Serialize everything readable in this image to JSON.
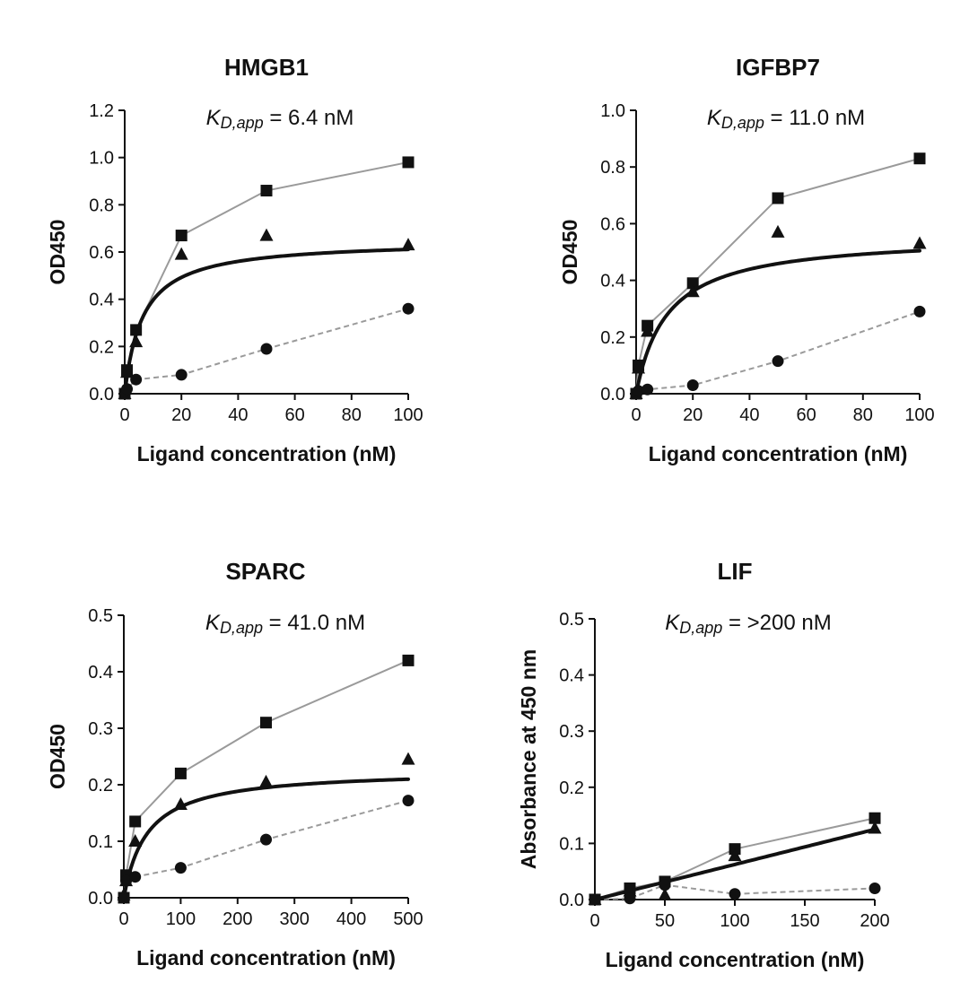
{
  "chart_data": [
    {
      "type": "line",
      "title": "HMGB1",
      "annotation": {
        "k_symbol": "K",
        "k_subscript": "D,app",
        "value_text": " = 6.4 nM"
      },
      "xlabel": "Ligand concentration (nM)",
      "ylabel": "OD450",
      "xlim": [
        0,
        100
      ],
      "ylim": [
        0,
        1.2
      ],
      "xticks": [
        0,
        20,
        40,
        60,
        80,
        100
      ],
      "xtick_labels": [
        "0",
        "20",
        "40",
        "60",
        "80",
        "100"
      ],
      "yticks": [
        0,
        0.2,
        0.4,
        0.6,
        0.8,
        1.0,
        1.2
      ],
      "ytick_labels": [
        "0.0",
        "0.2",
        "0.4",
        "0.6",
        "0.8",
        "1.0",
        "1.2"
      ],
      "series": [
        {
          "name": "squares",
          "marker": "square",
          "line": "solid-gray",
          "x": [
            0,
            0.8,
            4,
            20,
            50,
            100
          ],
          "y": [
            0.0,
            0.1,
            0.27,
            0.67,
            0.86,
            0.98
          ]
        },
        {
          "name": "triangles",
          "marker": "triangle",
          "line": "none",
          "x": [
            0,
            0.8,
            4,
            20,
            50,
            100
          ],
          "y": [
            0.0,
            0.09,
            0.22,
            0.59,
            0.67,
            0.63
          ]
        },
        {
          "name": "circles",
          "marker": "circle",
          "line": "dashed-gray",
          "x": [
            0,
            0.8,
            4,
            20,
            50,
            100
          ],
          "y": [
            0.0,
            0.02,
            0.06,
            0.08,
            0.19,
            0.36
          ]
        }
      ],
      "fit": {
        "model": "one-site",
        "bmax": 0.65,
        "kd": 6.4
      }
    },
    {
      "type": "line",
      "title": "IGFBP7",
      "annotation": {
        "k_symbol": "K",
        "k_subscript": "D,app",
        "value_text": " = 11.0 nM"
      },
      "xlabel": "Ligand concentration (nM)",
      "ylabel": "OD450",
      "xlim": [
        0,
        100
      ],
      "ylim": [
        0,
        1.0
      ],
      "xticks": [
        0,
        20,
        40,
        60,
        80,
        100
      ],
      "xtick_labels": [
        "0",
        "20",
        "40",
        "60",
        "80",
        "100"
      ],
      "yticks": [
        0,
        0.2,
        0.4,
        0.6,
        0.8,
        1.0
      ],
      "ytick_labels": [
        "0.0",
        "0.2",
        "0.4",
        "0.6",
        "0.8",
        "1.0"
      ],
      "series": [
        {
          "name": "squares",
          "marker": "square",
          "line": "solid-gray",
          "x": [
            0,
            0.8,
            4,
            20,
            50,
            100
          ],
          "y": [
            0.0,
            0.1,
            0.24,
            0.39,
            0.69,
            0.83
          ]
        },
        {
          "name": "triangles",
          "marker": "triangle",
          "line": "none",
          "x": [
            0,
            0.8,
            4,
            20,
            50,
            100
          ],
          "y": [
            0.0,
            0.09,
            0.22,
            0.36,
            0.57,
            0.53
          ]
        },
        {
          "name": "circles",
          "marker": "circle",
          "line": "dashed-gray",
          "x": [
            0,
            0.8,
            4,
            20,
            50,
            100
          ],
          "y": [
            0.0,
            0.01,
            0.015,
            0.03,
            0.115,
            0.29
          ]
        }
      ],
      "fit": {
        "model": "one-site",
        "bmax": 0.56,
        "kd": 11.0
      }
    },
    {
      "type": "line",
      "title": "SPARC",
      "annotation": {
        "k_symbol": "K",
        "k_subscript": "D,app",
        "value_text": " = 41.0 nM"
      },
      "xlabel": "Ligand concentration (nM)",
      "ylabel": "OD450",
      "xlim": [
        0,
        500
      ],
      "ylim": [
        0,
        0.5
      ],
      "xticks": [
        0,
        100,
        200,
        300,
        400,
        500
      ],
      "xtick_labels": [
        "0",
        "100",
        "200",
        "300",
        "400",
        "500"
      ],
      "yticks": [
        0,
        0.1,
        0.2,
        0.3,
        0.4,
        0.5
      ],
      "ytick_labels": [
        "0.0",
        "0.1",
        "0.2",
        "0.3",
        "0.4",
        "0.5"
      ],
      "series": [
        {
          "name": "squares",
          "marker": "square",
          "line": "solid-gray",
          "x": [
            0,
            4,
            20,
            100,
            250,
            500
          ],
          "y": [
            0.0,
            0.04,
            0.135,
            0.22,
            0.31,
            0.42
          ]
        },
        {
          "name": "triangles",
          "marker": "triangle",
          "line": "none",
          "x": [
            0,
            4,
            20,
            100,
            250,
            500
          ],
          "y": [
            0.005,
            0.03,
            0.1,
            0.165,
            0.205,
            0.245
          ]
        },
        {
          "name": "circles",
          "marker": "circle",
          "line": "dashed-gray",
          "x": [
            0,
            4,
            20,
            100,
            250,
            500
          ],
          "y": [
            0.0,
            0.03,
            0.037,
            0.053,
            0.103,
            0.172
          ]
        }
      ],
      "fit": {
        "model": "one-site",
        "bmax": 0.227,
        "kd": 41.0
      }
    },
    {
      "type": "line",
      "title": "LIF",
      "annotation": {
        "k_symbol": "K",
        "k_subscript": "D,app",
        "value_text": " = >200 nM"
      },
      "xlabel": "Ligand concentration (nM)",
      "ylabel": "Absorbance at 450 nm",
      "xlim": [
        0,
        200
      ],
      "ylim": [
        0,
        0.5
      ],
      "xticks": [
        0,
        50,
        100,
        150,
        200
      ],
      "xtick_labels": [
        "0",
        "50",
        "100",
        "150",
        "200"
      ],
      "yticks": [
        0,
        0.1,
        0.2,
        0.3,
        0.4,
        0.5
      ],
      "ytick_labels": [
        "0.0",
        "0.1",
        "0.2",
        "0.3",
        "0.4",
        "0.5"
      ],
      "series": [
        {
          "name": "squares",
          "marker": "square",
          "line": "solid-gray",
          "x": [
            0,
            25,
            50,
            100,
            200
          ],
          "y": [
            0.0,
            0.02,
            0.032,
            0.09,
            0.145
          ]
        },
        {
          "name": "triangles",
          "marker": "triangle",
          "line": "none",
          "x": [
            0,
            25,
            50,
            100,
            200
          ],
          "y": [
            0.0,
            0.015,
            0.008,
            0.078,
            0.127
          ]
        },
        {
          "name": "circles",
          "marker": "circle",
          "line": "dashed-gray",
          "x": [
            0,
            25,
            50,
            100,
            200
          ],
          "y": [
            0.0,
            0.002,
            0.026,
            0.01,
            0.02
          ]
        }
      ],
      "fit": {
        "model": "linear",
        "slope": 0.000625,
        "intercept": 0.0
      }
    }
  ],
  "colors": {
    "axis": "#111111",
    "marker": "#111111",
    "connector": "#9a9a9a",
    "fit": "#111111",
    "background": "#ffffff"
  }
}
